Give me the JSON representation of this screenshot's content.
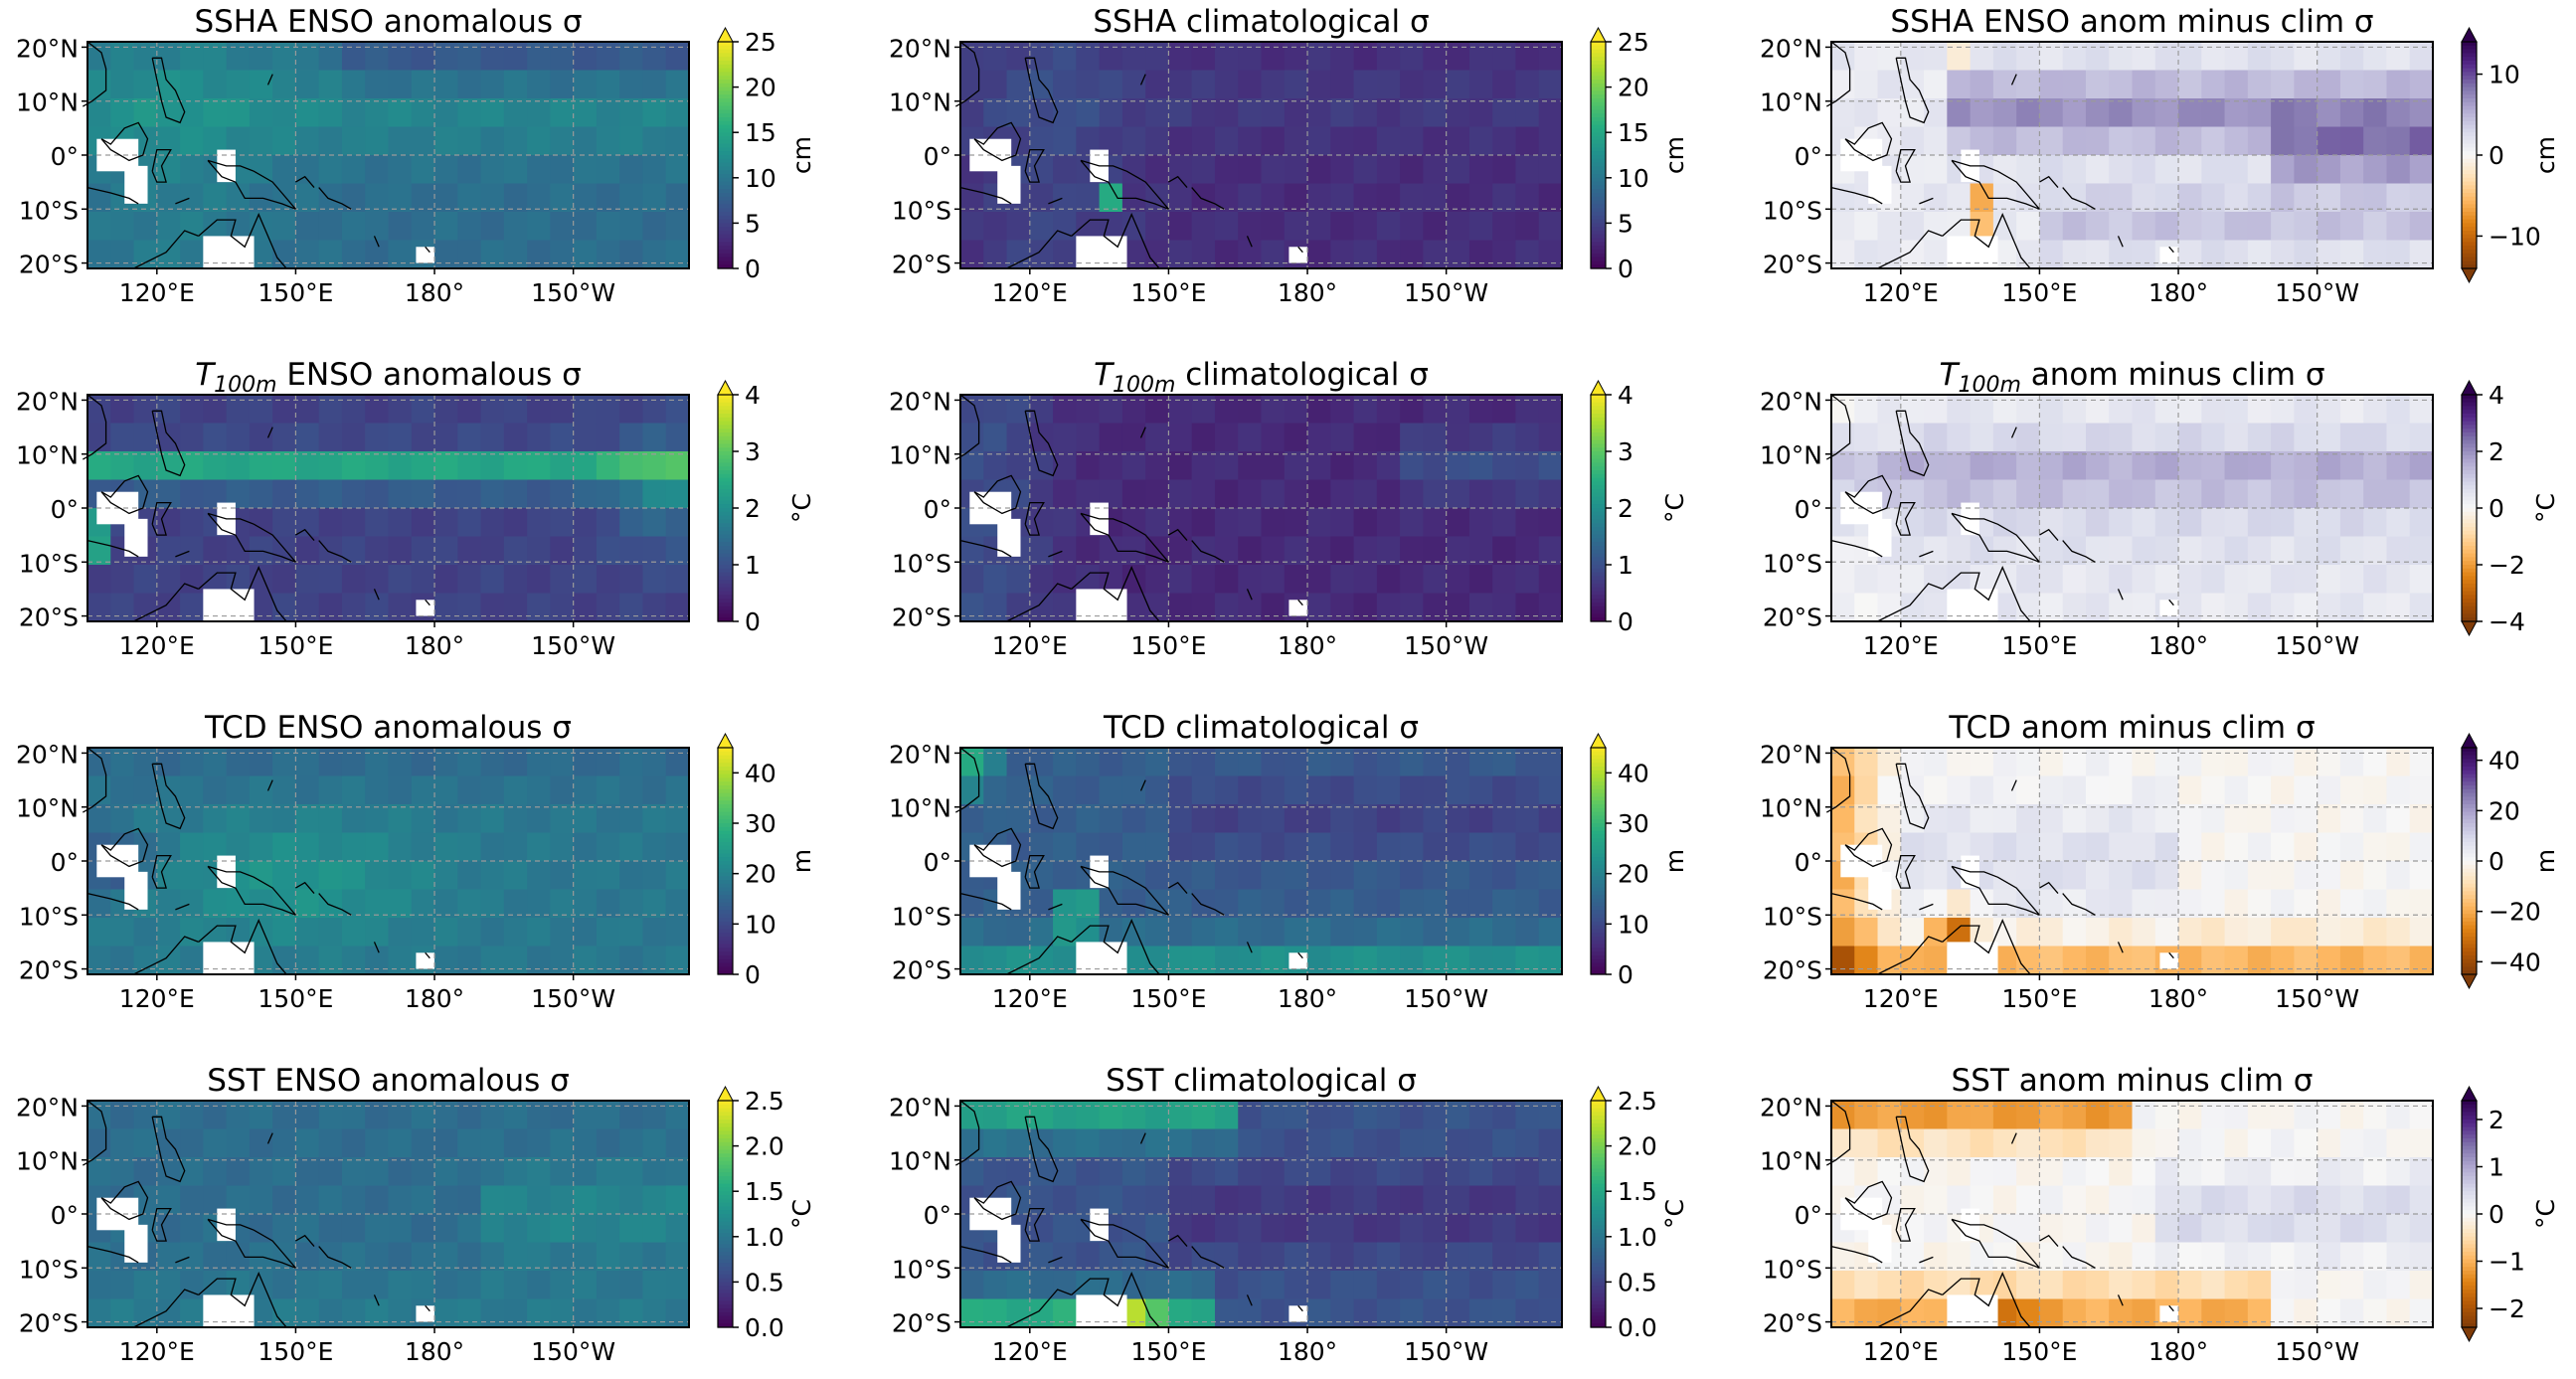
{
  "figure": {
    "longitude_ticks": [
      "120°E",
      "150°E",
      "180°",
      "150°W"
    ],
    "latitude_ticks": [
      "20°N",
      "10°N",
      "0°",
      "10°S",
      "20°S"
    ],
    "rows": [
      "SSHA",
      "T100m",
      "TCD",
      "SST"
    ],
    "columns": [
      "ENSO anomalous σ",
      "climatological σ",
      "anom minus clim σ"
    ]
  },
  "chart_data": [
    {
      "type": "heatmap",
      "title": "SSHA ENSO anomalous σ",
      "colorbar": {
        "label": "cm",
        "ticks": [
          "0",
          "5",
          "10",
          "15",
          "20",
          "25"
        ],
        "range": [
          0,
          25
        ],
        "extend": "max",
        "colormap": "viridis"
      },
      "lon_range": [
        "105°E",
        "125°W"
      ],
      "lat_range": [
        "21°S",
        "21°N"
      ],
      "grid": true
    },
    {
      "type": "heatmap",
      "title": "SSHA climatological σ",
      "colorbar": {
        "label": "cm",
        "ticks": [
          "0",
          "5",
          "10",
          "15",
          "20",
          "25"
        ],
        "range": [
          0,
          25
        ],
        "extend": "max",
        "colormap": "viridis"
      },
      "grid": true
    },
    {
      "type": "heatmap",
      "title": "SSHA ENSO anom minus clim σ",
      "colorbar": {
        "label": "cm",
        "ticks": [
          "−10",
          "0",
          "10"
        ],
        "range": [
          -14,
          14
        ],
        "extend": "both",
        "colormap": "PuOr"
      },
      "grid": true
    },
    {
      "type": "heatmap",
      "title_main": "T",
      "title_sub": "100m",
      "title_rest": " ENSO anomalous σ",
      "colorbar": {
        "label": "°C",
        "ticks": [
          "0",
          "1",
          "2",
          "3",
          "4"
        ],
        "range": [
          0,
          4
        ],
        "extend": "max",
        "colormap": "viridis"
      },
      "grid": true
    },
    {
      "type": "heatmap",
      "title_main": "T",
      "title_sub": "100m",
      "title_rest": " climatological σ",
      "colorbar": {
        "label": "°C",
        "ticks": [
          "0",
          "1",
          "2",
          "3",
          "4"
        ],
        "range": [
          0,
          4
        ],
        "extend": "max",
        "colormap": "viridis"
      },
      "grid": true
    },
    {
      "type": "heatmap",
      "title_main": "T",
      "title_sub": "100m",
      "title_rest": " anom minus clim σ",
      "colorbar": {
        "label": "°C",
        "ticks": [
          "−4",
          "−2",
          "0",
          "2",
          "4"
        ],
        "range": [
          -4,
          4
        ],
        "extend": "both",
        "colormap": "PuOr"
      },
      "grid": true
    },
    {
      "type": "heatmap",
      "title": "TCD ENSO anomalous σ",
      "colorbar": {
        "label": "m",
        "ticks": [
          "0",
          "10",
          "20",
          "30",
          "40"
        ],
        "range": [
          0,
          45
        ],
        "extend": "max",
        "colormap": "viridis"
      },
      "grid": true
    },
    {
      "type": "heatmap",
      "title": "TCD climatological σ",
      "colorbar": {
        "label": "m",
        "ticks": [
          "0",
          "10",
          "20",
          "30",
          "40"
        ],
        "range": [
          0,
          45
        ],
        "extend": "max",
        "colormap": "viridis"
      },
      "grid": true
    },
    {
      "type": "heatmap",
      "title": "TCD anom minus clim σ",
      "colorbar": {
        "label": "m",
        "ticks": [
          "−40",
          "−20",
          "0",
          "20",
          "40"
        ],
        "range": [
          -45,
          45
        ],
        "extend": "both",
        "colormap": "PuOr"
      },
      "grid": true
    },
    {
      "type": "heatmap",
      "title": "SST ENSO anomalous σ",
      "colorbar": {
        "label": "°C",
        "ticks": [
          "0.0",
          "0.5",
          "1.0",
          "1.5",
          "2.0",
          "2.5"
        ],
        "range": [
          0,
          2.5
        ],
        "extend": "max",
        "colormap": "viridis"
      },
      "grid": true
    },
    {
      "type": "heatmap",
      "title": "SST climatological σ",
      "colorbar": {
        "label": "°C",
        "ticks": [
          "0.0",
          "0.5",
          "1.0",
          "1.5",
          "2.0",
          "2.5"
        ],
        "range": [
          0,
          2.5
        ],
        "extend": "max",
        "colormap": "viridis"
      },
      "grid": true
    },
    {
      "type": "heatmap",
      "title": "SST anom minus clim σ",
      "colorbar": {
        "label": "°C",
        "ticks": [
          "−2",
          "−1",
          "0",
          "1",
          "2"
        ],
        "range": [
          -2.4,
          2.4
        ],
        "extend": "both",
        "colormap": "PuOr"
      },
      "grid": true
    }
  ]
}
